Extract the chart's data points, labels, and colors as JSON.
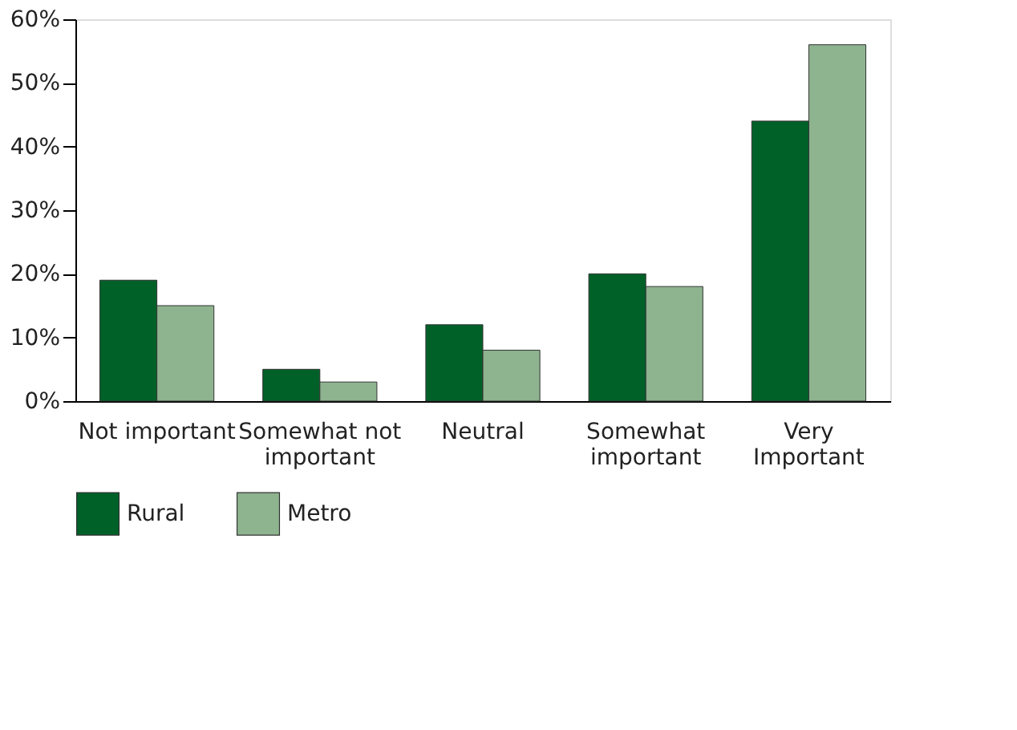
{
  "chart_data": {
    "type": "bar",
    "categories": [
      "Not important",
      "Somewhat not important",
      "Neutral",
      "Somewhat important",
      "Very Important"
    ],
    "series": [
      {
        "name": "Rural",
        "color": "#006128",
        "values": [
          19,
          5,
          12,
          20,
          44
        ]
      },
      {
        "name": "Metro",
        "color": "#8db38f",
        "values": [
          15,
          3,
          8,
          18,
          56
        ]
      }
    ],
    "ylim": [
      0,
      60
    ],
    "yticks": [
      {
        "value": 0,
        "label": "0%"
      },
      {
        "value": 10,
        "label": "10%"
      },
      {
        "value": 20,
        "label": "20%"
      },
      {
        "value": 30,
        "label": "30%"
      },
      {
        "value": 40,
        "label": "40%"
      },
      {
        "value": 50,
        "label": "50%"
      },
      {
        "value": 60,
        "label": "60%"
      }
    ],
    "grid": false,
    "legend": "bottom"
  }
}
